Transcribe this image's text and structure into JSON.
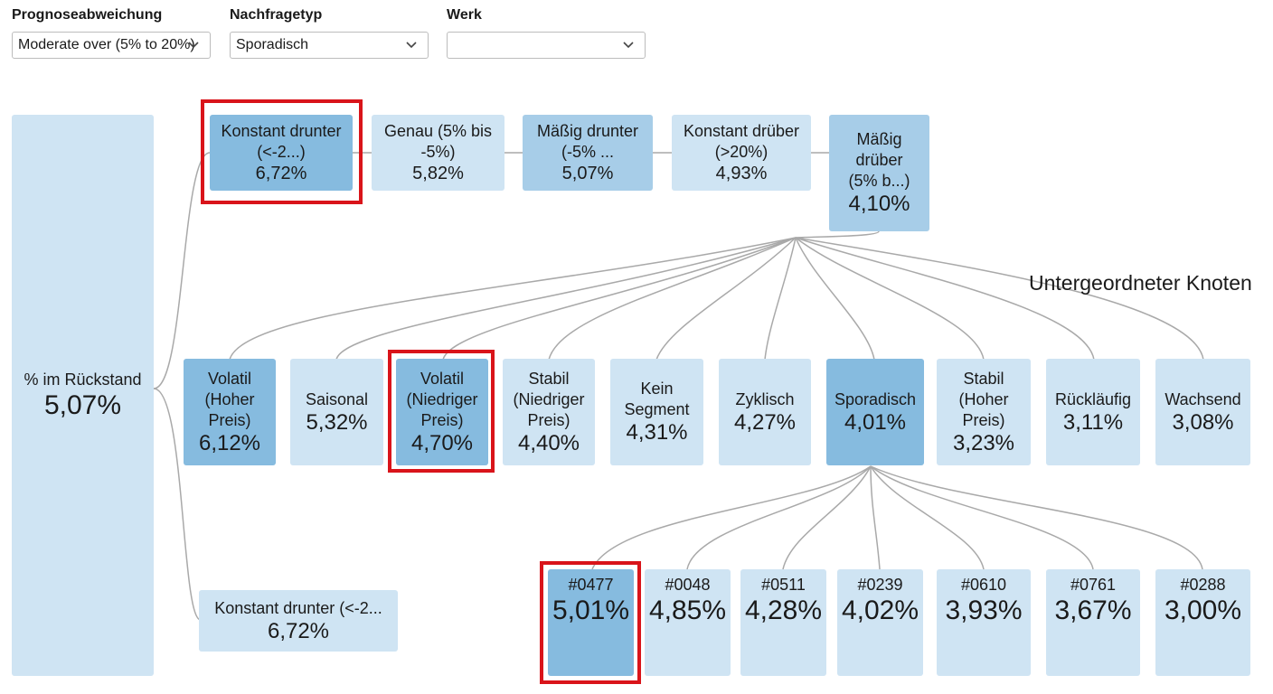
{
  "filters": [
    {
      "label": "Prognoseabweichung",
      "value": "Moderate over (5% to 20%)"
    },
    {
      "label": "Nachfragetyp",
      "value": "Sporadisch"
    },
    {
      "label": "Werk",
      "value": ""
    }
  ],
  "heading": "Untergeordneter Knoten",
  "root": {
    "label": "% im Rückstand",
    "value": "5,07%"
  },
  "level1": [
    {
      "label": "Konstant drunter\n(<-2...)",
      "value": "6,72%"
    },
    {
      "label": "Genau (5% bis\n-5%)",
      "value": "5,82%"
    },
    {
      "label": "Mäßig drunter\n(-5% ...",
      "value": "5,07%"
    },
    {
      "label": "Konstant drüber\n(>20%)",
      "value": "4,93%"
    },
    {
      "label": "Mäßig\ndrüber\n(5% b...)",
      "value": "4,10%"
    }
  ],
  "level2": [
    {
      "label": "Volatil\n(Hoher\nPreis)",
      "value": "6,12%"
    },
    {
      "label": "Saisonal",
      "value": "5,32%"
    },
    {
      "label": "Volatil\n(Niedriger\nPreis)",
      "value": "4,70%"
    },
    {
      "label": "Stabil\n(Niedriger\nPreis)",
      "value": "4,40%"
    },
    {
      "label": "Kein\nSegment",
      "value": "4,31%"
    },
    {
      "label": "Zyklisch",
      "value": "4,27%"
    },
    {
      "label": "Sporadisch",
      "value": "4,01%"
    },
    {
      "label": "Stabil\n(Hoher\nPreis)",
      "value": "3,23%"
    },
    {
      "label": "Rückläufig",
      "value": "3,11%"
    },
    {
      "label": "Wachsend",
      "value": "3,08%"
    }
  ],
  "level3": [
    {
      "label": "#0477",
      "value": "5,01%"
    },
    {
      "label": "#0048",
      "value": "4,85%"
    },
    {
      "label": "#0511",
      "value": "4,28%"
    },
    {
      "label": "#0239",
      "value": "4,02%"
    },
    {
      "label": "#0610",
      "value": "3,93%"
    },
    {
      "label": "#0761",
      "value": "3,67%"
    },
    {
      "label": "#0288",
      "value": "3,00%"
    }
  ],
  "branch": {
    "label": "Konstant drunter (<-2...",
    "value": "6,72%"
  },
  "colors": {
    "node_light": "#cfe4f3",
    "node_mid": "#a7cde8",
    "node_dark": "#86bbdf",
    "highlight": "#d9141a",
    "connector": "#a9a9a9"
  }
}
